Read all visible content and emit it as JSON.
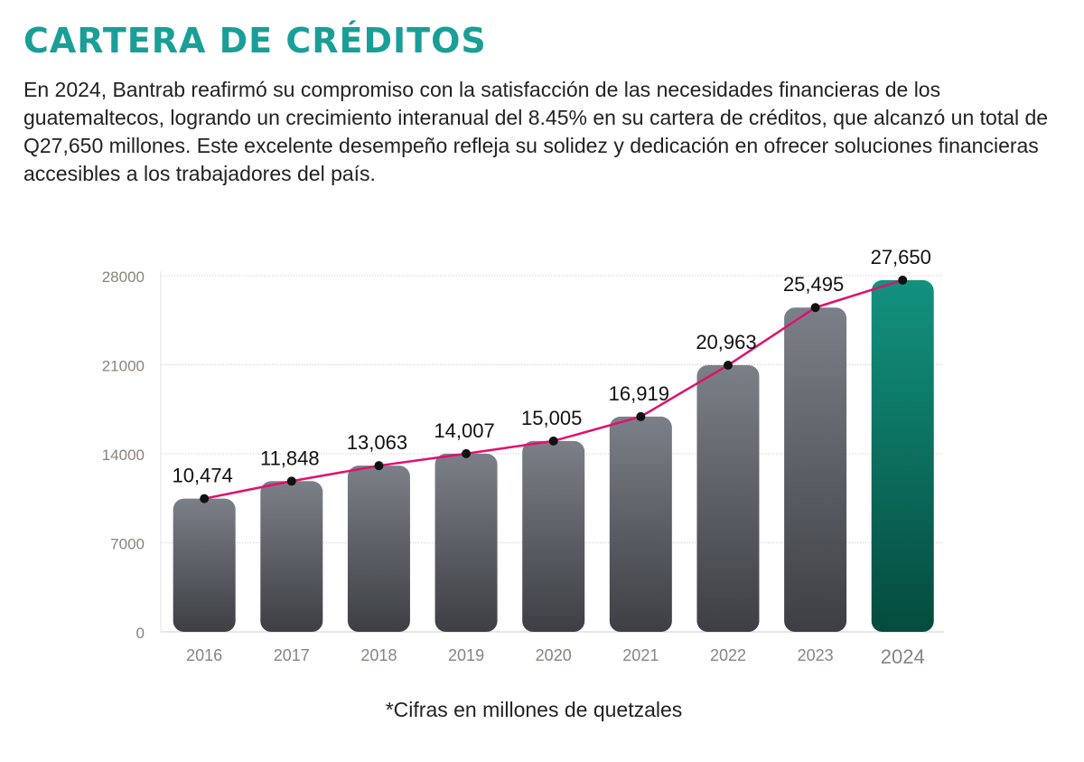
{
  "page": {
    "title": "CARTERA DE CRÉDITOS",
    "intro": "En 2024, Bantrab reafirmó su compromiso con la satisfacción de las necesidades financieras de los guatemaltecos, logrando un crecimiento interanual del 8.45% en su cartera de créditos, que alcanzó un total de Q27,650 millones. Este excelente desempeño refleja su solidez y dedicación en ofrecer soluciones financieras accesibles a los trabajadores del país.",
    "footnote": "*Cifras en millones de quetzales"
  },
  "colors": {
    "title": "#1a9e98",
    "bar_top": "#7b7f87",
    "bar_bottom": "#3d3f44",
    "highlight_top": "#13927f",
    "highlight_bottom": "#044b3d",
    "line": "#e0106e",
    "marker": "#111111",
    "grid": "#c8c8c8",
    "tick_text": "#8a847a"
  },
  "chart_data": {
    "type": "bar",
    "categories": [
      "2016",
      "2017",
      "2018",
      "2019",
      "2020",
      "2021",
      "2022",
      "2023",
      "2024"
    ],
    "values": [
      10474,
      11848,
      13063,
      14007,
      15005,
      16919,
      20963,
      25495,
      27650
    ],
    "data_labels": [
      "10,474",
      "11,848",
      "13,063",
      "14,007",
      "15,005",
      "16,919",
      "20,963",
      "25,495",
      "27,650"
    ],
    "y_ticks": [
      "0",
      "7000",
      "14000",
      "21000",
      "28000"
    ],
    "ylim": [
      0,
      28000
    ],
    "highlight_category": "2024",
    "overlay_line": true,
    "grid": "horizontal dotted",
    "legend": "none"
  }
}
